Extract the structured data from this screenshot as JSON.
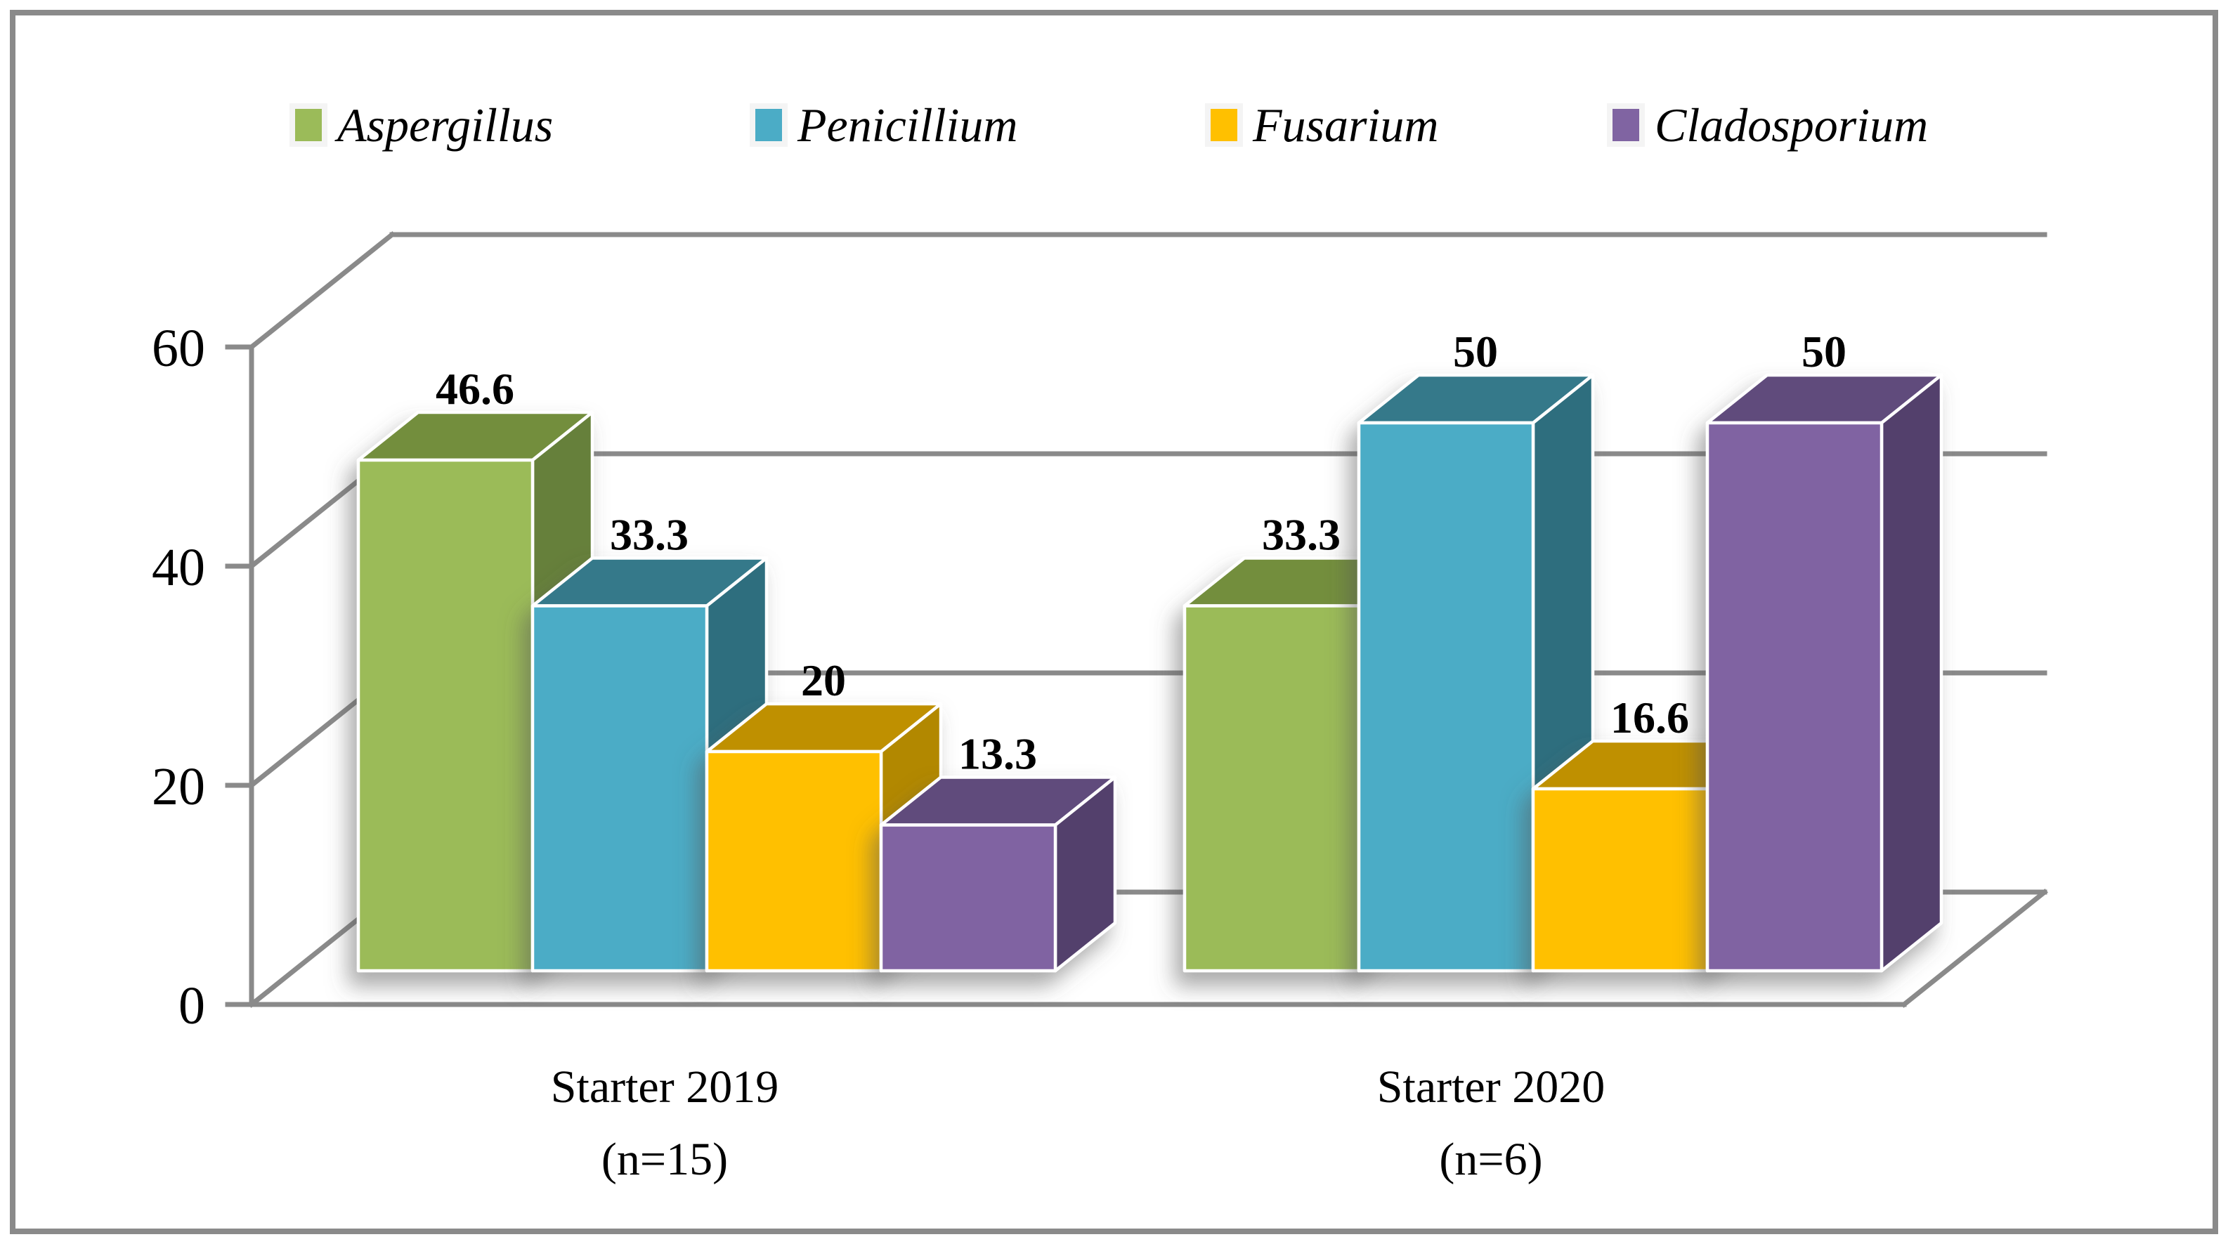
{
  "figure": {
    "background": "#ffffff",
    "border_color": "#8a8a8a"
  },
  "chart_data": {
    "type": "bar",
    "style": "3d-clustered-column",
    "legend_position": "top",
    "gridlines": true,
    "axis_color": "#8a8a8a",
    "label_color": "#000000",
    "categories": [
      {
        "line1": "Starter 2019",
        "line2": "(n=15)"
      },
      {
        "line1": "Starter 2020",
        "line2": "(n=6)"
      }
    ],
    "series": [
      {
        "name": "Aspergillus",
        "color": "#9BBB59",
        "top_color": "#738E3E",
        "side_color": "#66803A",
        "values": [
          46.6,
          33.3
        ]
      },
      {
        "name": "Penicillium",
        "color": "#4BACC6",
        "top_color": "#35798A",
        "side_color": "#2F6E7E",
        "values": [
          33.3,
          50
        ]
      },
      {
        "name": "Fusarium",
        "color": "#FFC000",
        "top_color": "#BF9000",
        "side_color": "#B28800",
        "values": [
          20,
          16.6
        ]
      },
      {
        "name": "Cladosporium",
        "color": "#8064A2",
        "top_color": "#604B7C",
        "side_color": "#53406C",
        "values": [
          13.3,
          50
        ]
      }
    ],
    "value_axis": {
      "min": 0,
      "max": 60,
      "ticks": [
        0,
        20,
        40,
        60
      ]
    }
  }
}
